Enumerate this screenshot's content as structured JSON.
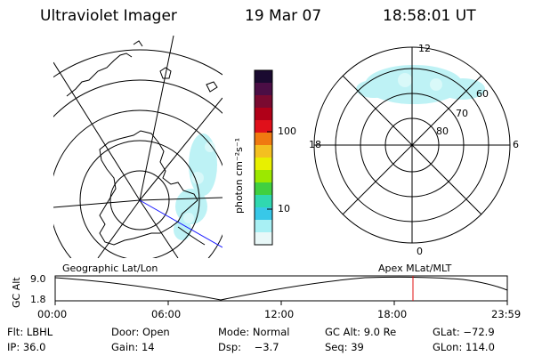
{
  "header": {
    "instrument": "Ultraviolet Imager",
    "date": "19 Mar 07",
    "time": "18:58:01 UT"
  },
  "colorbar": {
    "unit_label": "photon cm⁻²s⁻¹",
    "ticks": [
      "100",
      "10"
    ],
    "colors": [
      "#1a0a30",
      "#4b0e45",
      "#7a0a30",
      "#b00018",
      "#e0101a",
      "#f07a10",
      "#f4c020",
      "#e8f000",
      "#9ce800",
      "#40d040",
      "#30d8b0",
      "#38c8e8",
      "#a8f0f4",
      "#e8f8f8"
    ]
  },
  "left_map": {
    "label": "Geographic Lat/Lon"
  },
  "right_map": {
    "label": "Apex MLat/MLT",
    "mlt_labels": {
      "top": "12",
      "left": "18",
      "right": "6",
      "bottom": "0"
    },
    "lat_labels": [
      "60",
      "70",
      "80"
    ]
  },
  "altitude_plot": {
    "ylabel": "GC Alt",
    "yticks": [
      "9.0",
      "1.8"
    ],
    "xticks": [
      "00:00",
      "06:00",
      "12:00",
      "18:00",
      "23:59"
    ]
  },
  "info": {
    "filter": "Flt: LBHL",
    "door": "Door: Open",
    "mode": "Mode: Normal",
    "gc_alt": "GC Alt: 9.0 Re",
    "glat": "GLat: −72.9",
    "ip": "IP: 36.0",
    "gain": "Gain: 14",
    "dsp": "Dsp:    −3.7",
    "seq": "Seq: 39",
    "glon": "GLon: 114.0"
  }
}
